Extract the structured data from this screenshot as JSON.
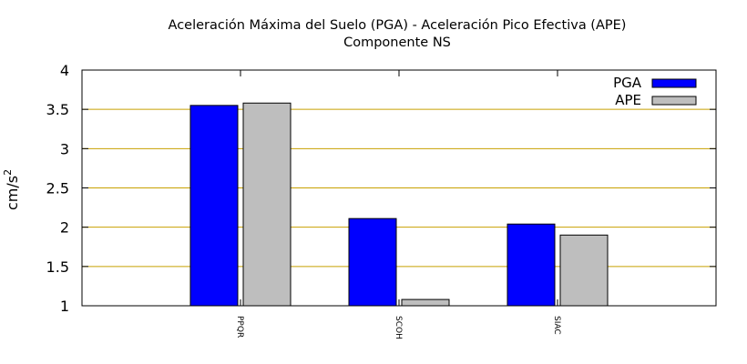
{
  "chart_data": {
    "type": "bar",
    "title": "Aceleración Máxima del Suelo (PGA) -  Aceleración Pico Efectiva (APE)",
    "subtitle": "Componente NS",
    "ylabel": "cm/s",
    "ylabel_superscript": "2",
    "xlabel": "",
    "categories": [
      "PPQR",
      "SCOH",
      "SIAC"
    ],
    "series": [
      {
        "name": "PGA",
        "values": [
          3.55,
          2.11,
          2.04
        ],
        "color": "#0000ff"
      },
      {
        "name": "APE",
        "values": [
          3.58,
          1.08,
          1.9
        ],
        "color": "#bebebe"
      }
    ],
    "ylim": [
      1,
      4
    ],
    "yticks": [
      "1",
      "1.5",
      "2",
      "2.5",
      "3",
      "3.5",
      "4"
    ],
    "ytick_values": [
      1,
      1.5,
      2,
      2.5,
      3,
      3.5,
      4
    ],
    "grid": true,
    "grid_color": "#c8a000",
    "legend_position": "top-right"
  }
}
